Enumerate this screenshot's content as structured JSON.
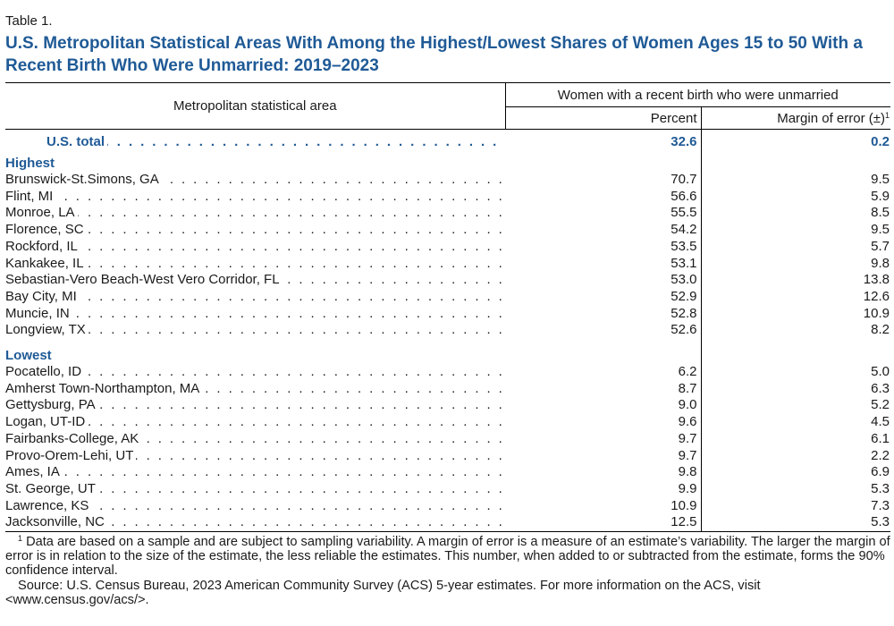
{
  "table_label": "Table 1.",
  "title": "U.S. Metropolitan Statistical Areas With Among the Highest/Lowest Shares of Women Ages 15 to 50 With a Recent Birth Who Were Unmarried: 2019–2023",
  "header": {
    "area": "Metropolitan statistical area",
    "group": "Women with a recent birth who were unmarried",
    "percent": "Percent",
    "moe": "Margin of error (±)",
    "moe_note": "1"
  },
  "dots": ". . . . . . . . . . . . . . . . . . . . . . . . . . . . . . . . . . . . . . . . . . . . . . . . . . . . . . . . . . . . . . . . . . . . . . . . . . . . . . . . . . . . . . . . . . . . . . . . . . . . . . . . . . . . . . . . . .",
  "total": {
    "name": "U.S. total",
    "percent": "32.6",
    "moe": "0.2"
  },
  "highest": {
    "label": "Highest",
    "rows": [
      {
        "name": "Brunswick-St.Simons, GA",
        "percent": "70.7",
        "moe": "9.5"
      },
      {
        "name": "Flint, MI",
        "percent": "56.6",
        "moe": "5.9"
      },
      {
        "name": "Monroe, LA",
        "percent": "55.5",
        "moe": "8.5"
      },
      {
        "name": "Florence, SC",
        "percent": "54.2",
        "moe": "9.5"
      },
      {
        "name": "Rockford, IL",
        "percent": "53.5",
        "moe": "5.7"
      },
      {
        "name": "Kankakee, IL",
        "percent": "53.1",
        "moe": "9.8"
      },
      {
        "name": "Sebastian-Vero Beach-West Vero Corridor, FL",
        "percent": "53.0",
        "moe": "13.8"
      },
      {
        "name": "Bay City, MI",
        "percent": "52.9",
        "moe": "12.6"
      },
      {
        "name": "Muncie, IN",
        "percent": "52.8",
        "moe": "10.9"
      },
      {
        "name": "Longview, TX",
        "percent": "52.6",
        "moe": "8.2"
      }
    ]
  },
  "lowest": {
    "label": "Lowest",
    "rows": [
      {
        "name": "Pocatello, ID",
        "percent": "6.2",
        "moe": "5.0"
      },
      {
        "name": "Amherst Town-Northampton, MA",
        "percent": "8.7",
        "moe": "6.3"
      },
      {
        "name": "Gettysburg, PA",
        "percent": "9.0",
        "moe": "5.2"
      },
      {
        "name": "Logan, UT-ID",
        "percent": "9.6",
        "moe": "4.5"
      },
      {
        "name": "Fairbanks-College, AK",
        "percent": "9.7",
        "moe": "6.1"
      },
      {
        "name": "Provo-Orem-Lehi, UT",
        "percent": "9.7",
        "moe": "2.2"
      },
      {
        "name": "Ames, IA",
        "percent": "9.8",
        "moe": "6.9"
      },
      {
        "name": "St. George, UT",
        "percent": "9.9",
        "moe": "5.3"
      },
      {
        "name": "Lawrence, KS",
        "percent": "10.9",
        "moe": "7.3"
      },
      {
        "name": "Jacksonville, NC",
        "percent": "12.5",
        "moe": "5.3"
      }
    ]
  },
  "footnote": {
    "marker": "1",
    "text": "Data are based on a sample and are subject to sampling variability. A margin of error is a measure of an estimate’s variability. The larger the margin of error is in relation to the size of the estimate, the less reliable the estimates. This number, when added to or subtracted from the estimate, forms the 90% confidence interval.",
    "source": "Source: U.S. Census Bureau, 2023 American Community Survey (ACS) 5-year estimates. For more information on the ACS, visit <www.census.gov/acs/>."
  },
  "colors": {
    "accent": "#1f5a96",
    "text": "#1a1a1a"
  }
}
